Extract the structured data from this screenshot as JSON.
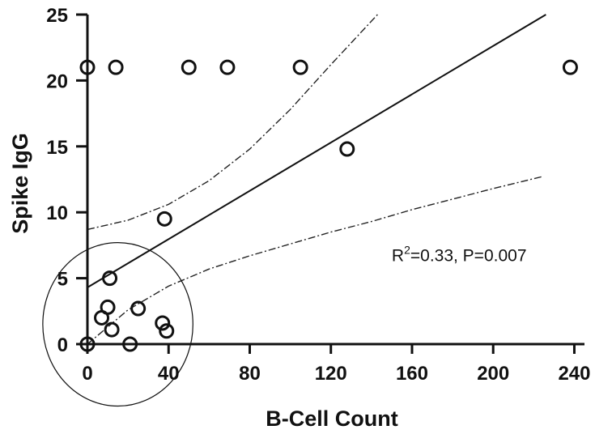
{
  "chart_data": {
    "type": "scatter",
    "xlabel": "B-Cell Count",
    "ylabel": "Spike IgG",
    "xlim": [
      0,
      245
    ],
    "ylim": [
      0,
      25
    ],
    "x_ticks": [
      0,
      40,
      80,
      120,
      160,
      200,
      240
    ],
    "y_ticks": [
      0,
      5,
      10,
      15,
      20,
      25
    ],
    "x_tick_labels": [
      "0",
      "40",
      "80",
      "120",
      "160",
      "200",
      "240"
    ],
    "y_tick_labels": [
      "0",
      "5",
      "10",
      "15",
      "20",
      "25"
    ],
    "grid": false,
    "points": [
      {
        "x": 0,
        "y": 21
      },
      {
        "x": 14,
        "y": 21
      },
      {
        "x": 50,
        "y": 21
      },
      {
        "x": 69,
        "y": 21
      },
      {
        "x": 105,
        "y": 21
      },
      {
        "x": 128,
        "y": 14.8
      },
      {
        "x": 38,
        "y": 9.5
      },
      {
        "x": 11,
        "y": 5
      },
      {
        "x": 10,
        "y": 2.8
      },
      {
        "x": 7,
        "y": 2
      },
      {
        "x": 25,
        "y": 2.7
      },
      {
        "x": 12,
        "y": 1.1
      },
      {
        "x": 37,
        "y": 1.6
      },
      {
        "x": 39,
        "y": 1
      },
      {
        "x": 0,
        "y": 0
      },
      {
        "x": 21,
        "y": 0
      },
      {
        "x": 238,
        "y": 21
      }
    ],
    "fit_line": {
      "x": [
        0,
        226
      ],
      "y": [
        4.3,
        25
      ]
    },
    "ci_upper": {
      "x": [
        0,
        20,
        40,
        60,
        80,
        100,
        120,
        143
      ],
      "y": [
        8.7,
        9.4,
        10.6,
        12.4,
        14.8,
        17.8,
        21.2,
        25
      ]
    },
    "ci_lower": {
      "x": [
        0,
        20,
        40,
        60,
        80,
        100,
        120,
        140,
        160,
        180,
        200,
        224
      ],
      "y": [
        0,
        2.6,
        4.4,
        5.7,
        6.7,
        7.6,
        8.5,
        9.3,
        10.2,
        11.0,
        11.8,
        12.7
      ]
    },
    "highlight_circle": {
      "cx": 15,
      "cy": 1.5,
      "rx": 37,
      "ry": 6.2
    },
    "annotation": {
      "r_label": "R",
      "sup": "2",
      "rest": "=0.33, P=0.007",
      "x": 150,
      "y": 6.3
    }
  }
}
